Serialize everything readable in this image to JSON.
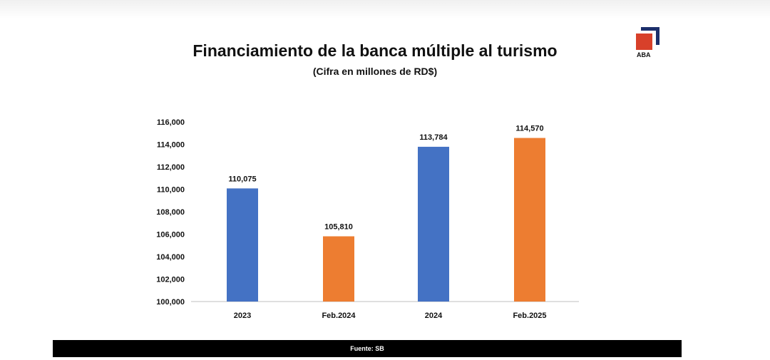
{
  "logo_text": "ABA",
  "footer": "Fuente: SB",
  "chart_data": {
    "type": "bar",
    "title": "Financiamiento de la banca múltiple al turismo",
    "subtitle": "(Cifra en millones de RD$)",
    "categories": [
      "2023",
      "Feb.2024",
      "2024",
      "Feb.2025"
    ],
    "values": [
      110075,
      105810,
      113784,
      114570
    ],
    "data_labels": [
      "110,075",
      "105,810",
      "113,784",
      "114,570"
    ],
    "colors": [
      "#4472c4",
      "#ed7d31",
      "#4472c4",
      "#ed7d31"
    ],
    "ylim": [
      100000,
      116000
    ],
    "yticks": [
      "100,000",
      "102,000",
      "104,000",
      "106,000",
      "108,000",
      "110,000",
      "112,000",
      "114,000",
      "116,000"
    ],
    "xlabel": "",
    "ylabel": "",
    "grid": false
  }
}
